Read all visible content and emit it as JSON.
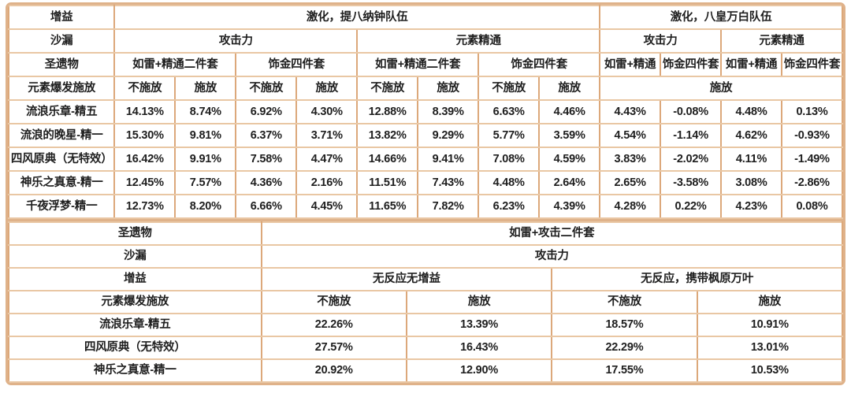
{
  "colors": {
    "border_outer": "#dfb28a",
    "grid_vertical": "#dca87a",
    "grid_horizontal": "#e9c7a4",
    "text": "#1e1e1e",
    "background": "#ffffff"
  },
  "upper_table": {
    "label_col_width_pct": 12.7,
    "header_rows": [
      [
        {
          "t": "增益"
        },
        {
          "t": "激化，提八纳钟队伍",
          "cs": 8
        },
        {
          "t": "激化，八皇万白队伍",
          "cs": 4
        }
      ],
      [
        {
          "t": "沙漏"
        },
        {
          "t": "攻击力",
          "cs": 4
        },
        {
          "t": "元素精通",
          "cs": 4
        },
        {
          "t": "攻击力",
          "cs": 2
        },
        {
          "t": "元素精通",
          "cs": 2
        }
      ],
      [
        {
          "t": "圣遗物"
        },
        {
          "t": "如雷+精通二件套",
          "cs": 2
        },
        {
          "t": "饰金四件套",
          "cs": 2
        },
        {
          "t": "如雷+精通二件套",
          "cs": 2
        },
        {
          "t": "饰金四件套",
          "cs": 2
        },
        {
          "t": "如雷+精通"
        },
        {
          "t": "饰金四件套"
        },
        {
          "t": "如雷+精通"
        },
        {
          "t": "饰金四件套"
        }
      ],
      [
        {
          "t": "元素爆发施放"
        },
        {
          "t": "不施放"
        },
        {
          "t": "施放"
        },
        {
          "t": "不施放"
        },
        {
          "t": "施放"
        },
        {
          "t": "不施放"
        },
        {
          "t": "施放"
        },
        {
          "t": "不施放"
        },
        {
          "t": "施放"
        },
        {
          "t": "施放",
          "cs": 4
        }
      ]
    ],
    "rows": [
      {
        "label": "流浪乐章-精五",
        "values": [
          "14.13%",
          "8.74%",
          "6.92%",
          "4.30%",
          "12.88%",
          "8.39%",
          "6.63%",
          "4.46%",
          "4.43%",
          "-0.08%",
          "4.48%",
          "0.13%"
        ]
      },
      {
        "label": "流浪的晚星-精一",
        "values": [
          "15.30%",
          "9.81%",
          "6.37%",
          "3.71%",
          "13.82%",
          "9.29%",
          "5.77%",
          "3.59%",
          "4.54%",
          "-1.14%",
          "4.62%",
          "-0.93%"
        ]
      },
      {
        "label": "四风原典（无特效）",
        "values": [
          "16.42%",
          "9.91%",
          "7.58%",
          "4.47%",
          "14.66%",
          "9.41%",
          "7.08%",
          "4.59%",
          "3.83%",
          "-2.02%",
          "4.11%",
          "-1.49%"
        ]
      },
      {
        "label": "神乐之真意-精一",
        "values": [
          "12.45%",
          "7.57%",
          "4.36%",
          "2.16%",
          "11.51%",
          "7.43%",
          "4.48%",
          "2.64%",
          "2.65%",
          "-3.58%",
          "3.08%",
          "-2.86%"
        ]
      },
      {
        "label": "千夜浮梦-精一",
        "values": [
          "12.73%",
          "8.20%",
          "6.66%",
          "4.45%",
          "11.65%",
          "7.82%",
          "6.23%",
          "4.39%",
          "4.28%",
          "0.22%",
          "4.23%",
          "0.08%"
        ]
      }
    ]
  },
  "lower_table": {
    "label_col_width_pct": 30.3,
    "header_rows": [
      [
        {
          "t": "圣遗物"
        },
        {
          "t": "如雷+攻击二件套",
          "cs": 4
        }
      ],
      [
        {
          "t": "沙漏"
        },
        {
          "t": "攻击力",
          "cs": 4
        }
      ],
      [
        {
          "t": "增益"
        },
        {
          "t": "无反应无增益",
          "cs": 2
        },
        {
          "t": "无反应，携带枫原万叶",
          "cs": 2
        }
      ],
      [
        {
          "t": "元素爆发施放"
        },
        {
          "t": "不施放"
        },
        {
          "t": "施放"
        },
        {
          "t": "不施放"
        },
        {
          "t": "施放"
        }
      ]
    ],
    "rows": [
      {
        "label": "流浪乐章-精五",
        "values": [
          "22.26%",
          "13.39%",
          "18.57%",
          "10.91%"
        ]
      },
      {
        "label": "四风原典（无特效）",
        "values": [
          "27.57%",
          "16.43%",
          "22.29%",
          "13.01%"
        ]
      },
      {
        "label": "神乐之真意-精一",
        "values": [
          "20.92%",
          "12.90%",
          "17.55%",
          "10.53%"
        ]
      }
    ]
  }
}
